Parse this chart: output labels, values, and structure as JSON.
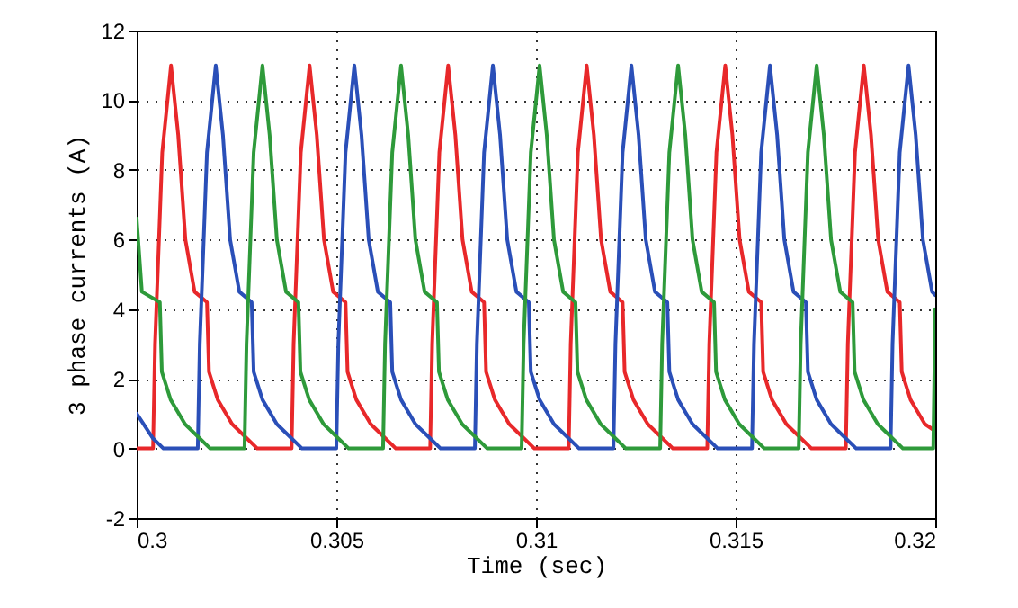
{
  "chart_data": {
    "type": "line",
    "xlabel": "Time (sec)",
    "ylabel": "3 phase currents (A)",
    "xlim": [
      0.3,
      0.32
    ],
    "xticks": [
      0.3,
      0.305,
      0.31,
      0.315,
      0.32
    ],
    "ylim": [
      -2,
      12
    ],
    "yticks": [
      -2,
      0,
      2,
      4,
      6,
      8,
      10,
      12
    ],
    "grid": true,
    "line_style": "solid",
    "marker": "none",
    "series": [
      {
        "color": "#e8282a",
        "x": [
          0.3,
          0.30041,
          0.30046,
          0.30064,
          0.30086,
          0.30104,
          0.30122,
          0.30145,
          0.30176,
          0.30181,
          0.30203,
          0.30239,
          0.30275,
          0.30302,
          0.30388,
          0.30393,
          0.30411,
          0.30433,
          0.30451,
          0.30469,
          0.30492,
          0.30523,
          0.30528,
          0.3055,
          0.30586,
          0.30622,
          0.30649,
          0.30735,
          0.3074,
          0.30758,
          0.3078,
          0.30798,
          0.30816,
          0.30839,
          0.3087,
          0.30875,
          0.30897,
          0.30933,
          0.30969,
          0.30996,
          0.31082,
          0.31087,
          0.31105,
          0.31127,
          0.31145,
          0.31163,
          0.31186,
          0.31217,
          0.31222,
          0.31244,
          0.3128,
          0.31316,
          0.31343,
          0.31429,
          0.31434,
          0.31452,
          0.31474,
          0.31492,
          0.3151,
          0.31533,
          0.31564,
          0.31569,
          0.31591,
          0.31627,
          0.31663,
          0.3169,
          0.31776,
          0.31781,
          0.31799,
          0.31821,
          0.31839,
          0.31857,
          0.3188,
          0.31911,
          0.31916,
          0.31938,
          0.31974,
          0.32
        ],
        "values": [
          0,
          0,
          3,
          8.5,
          11,
          9,
          6,
          4.5,
          4.2,
          2.2,
          1.4,
          0.7,
          0.3,
          0,
          0,
          3,
          8.5,
          11,
          9,
          6,
          4.5,
          4.2,
          2.2,
          1.4,
          0.7,
          0.3,
          0,
          0,
          3,
          8.5,
          11,
          9,
          6,
          4.5,
          4.2,
          2.2,
          1.4,
          0.7,
          0.3,
          0,
          0,
          3,
          8.5,
          11,
          9,
          6,
          4.5,
          4.2,
          2.2,
          1.4,
          0.7,
          0.3,
          0,
          0,
          3,
          8.5,
          11,
          9,
          6,
          4.5,
          4.2,
          2.2,
          1.4,
          0.7,
          0.3,
          0,
          0,
          3,
          8.5,
          11,
          9,
          6,
          4.5,
          4.2,
          2.2,
          1.4,
          0.7,
          0.5
        ]
      },
      {
        "color": "#2a4fb8",
        "x": [
          0.3,
          0.3004,
          0.30067,
          0.30153,
          0.30158,
          0.30176,
          0.30198,
          0.30216,
          0.30234,
          0.30257,
          0.30288,
          0.30293,
          0.30315,
          0.30351,
          0.30387,
          0.30414,
          0.305,
          0.30505,
          0.30523,
          0.30545,
          0.30563,
          0.30581,
          0.30604,
          0.30635,
          0.3064,
          0.30662,
          0.30698,
          0.30734,
          0.30761,
          0.30847,
          0.30852,
          0.3087,
          0.30892,
          0.3091,
          0.30928,
          0.30951,
          0.30982,
          0.30987,
          0.31009,
          0.31045,
          0.31081,
          0.31108,
          0.31194,
          0.31199,
          0.31217,
          0.31239,
          0.31257,
          0.31275,
          0.31298,
          0.31329,
          0.31334,
          0.31356,
          0.31392,
          0.31428,
          0.31455,
          0.31541,
          0.31546,
          0.31564,
          0.31586,
          0.31604,
          0.31622,
          0.31645,
          0.31676,
          0.31681,
          0.31703,
          0.31739,
          0.31775,
          0.31802,
          0.31888,
          0.31893,
          0.31911,
          0.31933,
          0.31951,
          0.31969,
          0.31992,
          0.32
        ],
        "values": [
          1,
          0.3,
          0,
          0,
          3,
          8.5,
          11,
          9,
          6,
          4.5,
          4.2,
          2.2,
          1.4,
          0.7,
          0.3,
          0,
          0,
          3,
          8.5,
          11,
          9,
          6,
          4.5,
          4.2,
          2.2,
          1.4,
          0.7,
          0.3,
          0,
          0,
          3,
          8.5,
          11,
          9,
          6,
          4.5,
          4.2,
          2.2,
          1.4,
          0.7,
          0.3,
          0,
          0,
          3,
          8.5,
          11,
          9,
          6,
          4.5,
          4.2,
          2.2,
          1.4,
          0.7,
          0.3,
          0,
          0,
          3,
          8.5,
          11,
          9,
          6,
          4.5,
          4.2,
          2.2,
          1.4,
          0.7,
          0.3,
          0,
          0,
          3,
          8.5,
          11,
          9,
          6,
          4.5,
          4.4
        ]
      },
      {
        "color": "#2e9a3a",
        "x": [
          0.3,
          0.30013,
          0.30058,
          0.30063,
          0.30085,
          0.30121,
          0.30157,
          0.30184,
          0.3027,
          0.30275,
          0.30293,
          0.30315,
          0.30333,
          0.30351,
          0.30374,
          0.30405,
          0.3041,
          0.30432,
          0.30468,
          0.30504,
          0.30531,
          0.30617,
          0.30622,
          0.3064,
          0.30662,
          0.3068,
          0.30698,
          0.30721,
          0.30752,
          0.30757,
          0.30779,
          0.30815,
          0.30851,
          0.30878,
          0.30964,
          0.30969,
          0.30987,
          0.31009,
          0.31027,
          0.31045,
          0.31068,
          0.31099,
          0.31104,
          0.31126,
          0.31162,
          0.31198,
          0.31225,
          0.31311,
          0.31316,
          0.31334,
          0.31356,
          0.31374,
          0.31392,
          0.31415,
          0.31446,
          0.31451,
          0.31473,
          0.31509,
          0.31545,
          0.31572,
          0.31658,
          0.31663,
          0.31681,
          0.31703,
          0.31721,
          0.31739,
          0.31762,
          0.31793,
          0.31798,
          0.3182,
          0.31856,
          0.31892,
          0.31919,
          0.31995,
          0.32
        ],
        "values": [
          6.6,
          4.5,
          4.2,
          2.2,
          1.4,
          0.7,
          0.3,
          0,
          0,
          3,
          8.5,
          11,
          9,
          6,
          4.5,
          4.2,
          2.2,
          1.4,
          0.7,
          0.3,
          0,
          0,
          3,
          8.5,
          11,
          9,
          6,
          4.5,
          4.2,
          2.2,
          1.4,
          0.7,
          0.3,
          0,
          0,
          3,
          8.5,
          11,
          9,
          6,
          4.5,
          4.2,
          2.2,
          1.4,
          0.7,
          0.3,
          0,
          0,
          3,
          8.5,
          11,
          9,
          6,
          4.5,
          4.2,
          2.2,
          1.4,
          0.7,
          0.3,
          0,
          0,
          3,
          8.5,
          11,
          9,
          6,
          4.5,
          4.2,
          2.2,
          1.4,
          0.7,
          0.3,
          0,
          0,
          4
        ]
      }
    ]
  }
}
